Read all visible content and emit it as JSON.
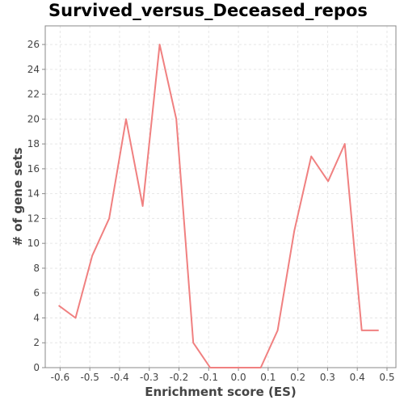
{
  "chart_data": {
    "type": "line",
    "title": "Survived_versus_Deceased_repos",
    "xlabel": "Enrichment score (ES)",
    "ylabel": "# of gene sets",
    "xlim": [
      -0.65,
      0.53
    ],
    "ylim": [
      0,
      27.5
    ],
    "xticks": [
      -0.6,
      -0.5,
      -0.4,
      -0.3,
      -0.2,
      -0.1,
      0.0,
      0.1,
      0.2,
      0.3,
      0.4,
      0.5
    ],
    "xtick_labels": [
      "-0.6",
      "-0.5",
      "-0.4",
      "-0.3",
      "-0.2",
      "-0.1",
      "0.0",
      "0.1",
      "0.2",
      "0.3",
      "0.4",
      "0.5"
    ],
    "yticks": [
      0,
      2,
      4,
      6,
      8,
      10,
      12,
      14,
      16,
      18,
      20,
      22,
      24,
      26
    ],
    "ytick_labels": [
      "0",
      "2",
      "4",
      "6",
      "8",
      "10",
      "12",
      "14",
      "16",
      "18",
      "20",
      "22",
      "24",
      "26"
    ],
    "grid": true,
    "line_color": "#f08080",
    "series": [
      {
        "x": [
          -0.605,
          -0.548,
          -0.492,
          -0.435,
          -0.378,
          -0.322,
          -0.265,
          -0.209,
          -0.152,
          -0.095,
          -0.038,
          0.018,
          0.075,
          0.132,
          0.188,
          0.245,
          0.302,
          0.358,
          0.415,
          0.472
        ],
        "y": [
          5,
          4,
          9,
          12,
          20,
          13,
          26,
          20,
          2,
          0,
          0,
          0,
          0,
          3,
          11,
          17,
          15,
          18,
          3,
          3
        ]
      }
    ]
  }
}
